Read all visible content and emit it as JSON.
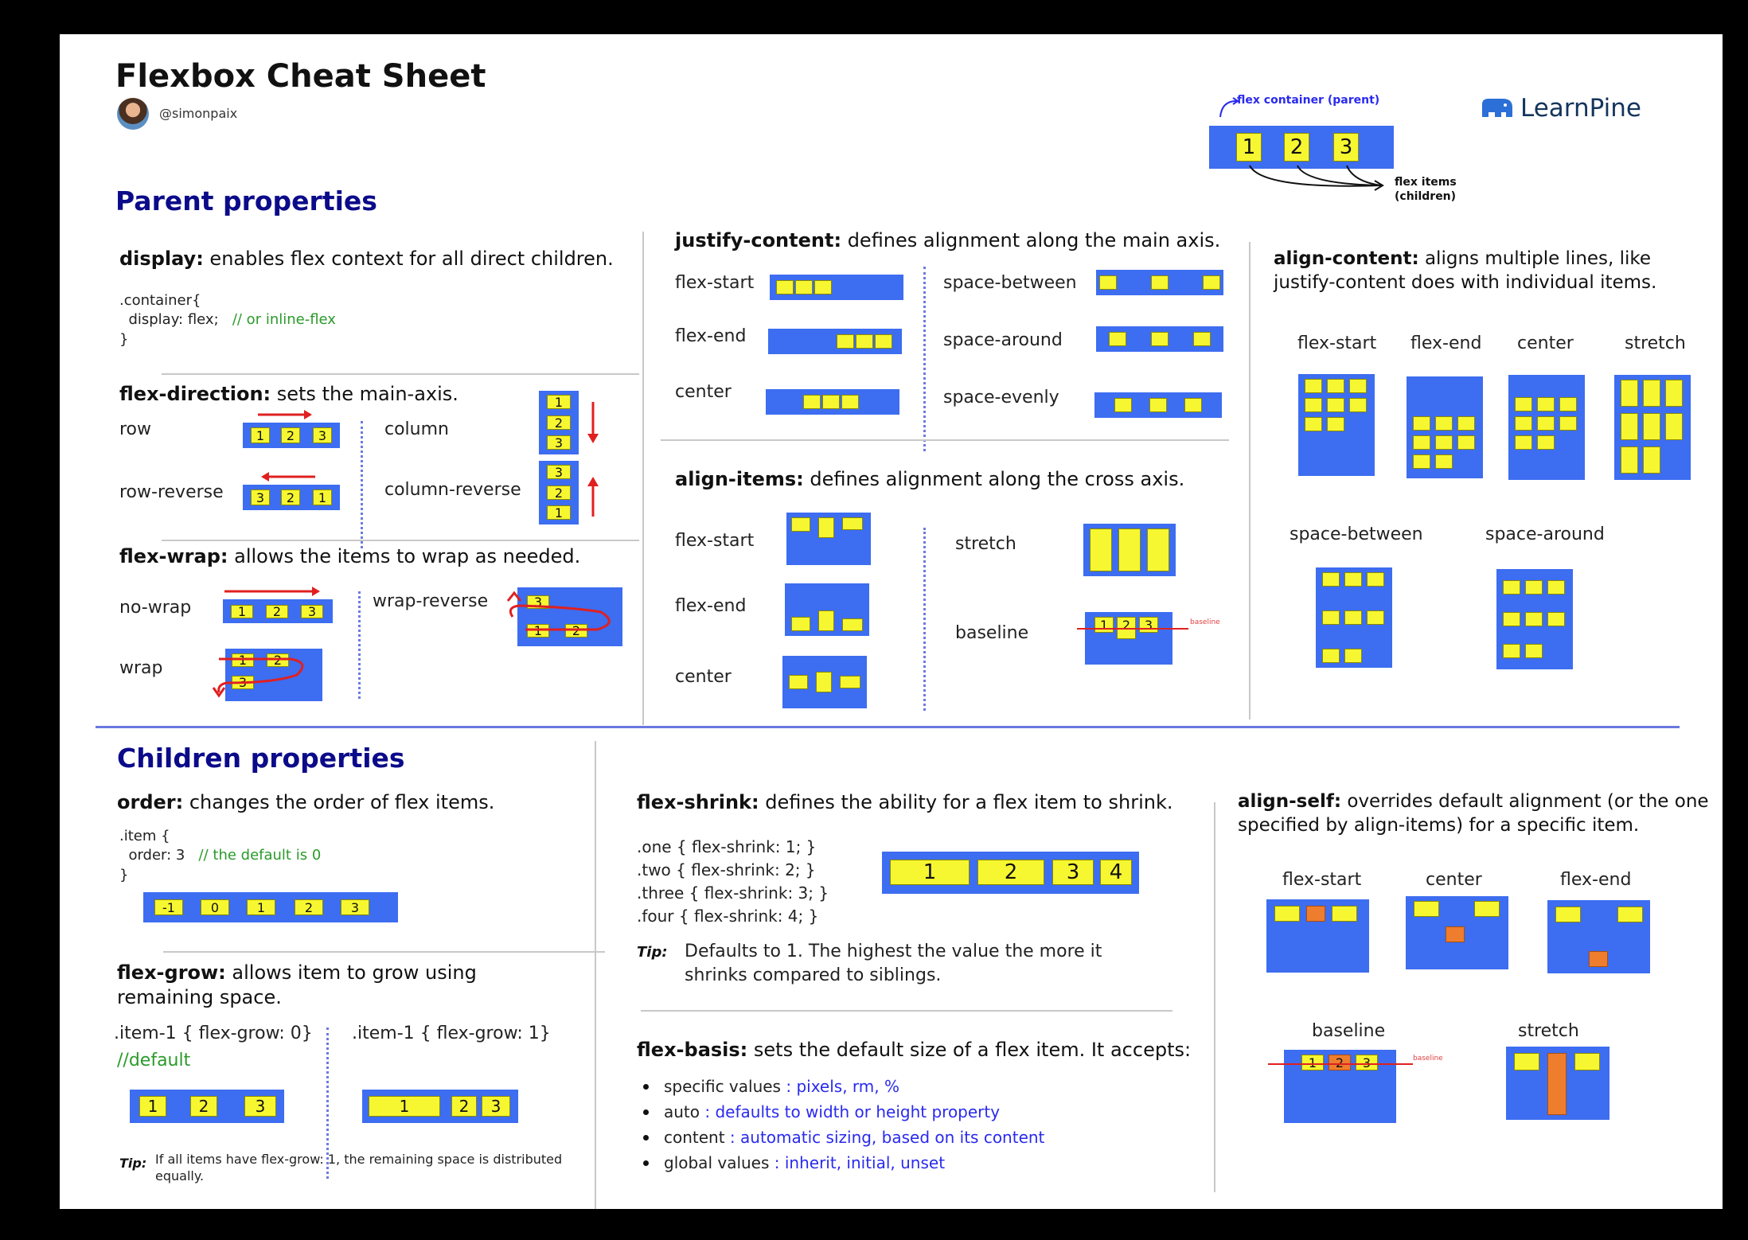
{
  "header": {
    "title": "Flexbox Cheat Sheet",
    "handle": "@simonpaix",
    "brand": "LearnPine",
    "container_note": "flex container (parent)",
    "items_note_1": "flex items",
    "items_note_2": "(children)",
    "demo_items": [
      "1",
      "2",
      "3"
    ]
  },
  "parent": {
    "title": "Parent properties",
    "display": {
      "prop": "display:",
      "desc": " enables flex context for all direct children.",
      "code_1": ".container{",
      "code_2": "  display: flex;",
      "code_comment": "// or inline-flex",
      "code_3": "}"
    },
    "direction": {
      "prop": "flex-direction:",
      "desc": " sets the main-axis.",
      "row": "row",
      "row_reverse": "row-reverse",
      "column": "column",
      "column_reverse": "column-reverse",
      "items": [
        "1",
        "2",
        "3"
      ],
      "items_rev": [
        "3",
        "2",
        "1"
      ]
    },
    "wrap": {
      "prop": "flex-wrap:",
      "desc": " allows the items to wrap as needed.",
      "no_wrap": "no-wrap",
      "wrap": "wrap",
      "wrap_reverse": "wrap-reverse"
    },
    "justify": {
      "prop": "justify-content:",
      "desc": " defines alignment along the main axis.",
      "flex_start": "flex-start",
      "flex_end": "flex-end",
      "center": "center",
      "space_between": "space-between",
      "space_around": "space-around",
      "space_evenly": "space-evenly"
    },
    "align_items": {
      "prop": "align-items:",
      "desc": " defines alignment along the cross axis.",
      "flex_start": "flex-start",
      "flex_end": "flex-end",
      "center": "center",
      "stretch": "stretch",
      "baseline": "baseline",
      "baseline_note": "baseline"
    },
    "align_content": {
      "prop": "align-content:",
      "desc": " aligns multiple lines, like justify-content does with individual items.",
      "flex_start": "flex-start",
      "flex_end": "flex-end",
      "center": "center",
      "stretch": "stretch",
      "space_between": "space-between",
      "space_around": "space-around"
    }
  },
  "children": {
    "title": "Children properties",
    "order": {
      "prop": "order:",
      "desc": " changes the order of flex items.",
      "code_1": ".item {",
      "code_2": "  order: 3",
      "code_comment": "// the default is 0",
      "code_3": "}",
      "items": [
        "-1",
        "0",
        "1",
        "2",
        "3"
      ]
    },
    "grow": {
      "prop": "flex-grow:",
      "desc": " allows item to grow using remaining space.",
      "code_a": ".item-1 { flex-grow: 0}",
      "code_a_comment": "//default",
      "code_b": ".item-1 { flex-grow: 1}",
      "tip_label": "Tip:",
      "tip": "If all items have flex-grow: 1, the remaining space is distributed equally."
    },
    "shrink": {
      "prop": "flex-shrink:",
      "desc": " defines the ability for a flex item to shrink.",
      "code_1": ".one { flex-shrink: 1; }",
      "code_2": ".two { flex-shrink: 2; }",
      "code_3": ".three { flex-shrink: 3; }",
      "code_4": ".four { flex-shrink: 4; }",
      "items": [
        "1",
        "2",
        "3",
        "4"
      ],
      "tip_label": "Tip:",
      "tip": "Defaults to 1. The highest the value the more it shrinks compared to siblings."
    },
    "basis": {
      "prop": "flex-basis:",
      "desc": " sets the default size of a flex item. It accepts:",
      "list": [
        {
          "k": "specific values",
          "v": " : pixels, rm, %"
        },
        {
          "k": "auto",
          "v": " : defaults to width or height property"
        },
        {
          "k": "content",
          "v": " : automatic sizing, based on its content"
        },
        {
          "k": "global values",
          "v": " : inherit, initial, unset"
        }
      ]
    },
    "align_self": {
      "prop": "align-self:",
      "desc": " overrides default alignment (or the one specified by align-items) for a specific item.",
      "flex_start": "flex-start",
      "center": "center",
      "flex_end": "flex-end",
      "baseline": "baseline",
      "stretch": "stretch",
      "baseline_note": "baseline"
    }
  },
  "colors": {
    "container": "#3d6df0",
    "item": "#f7f731",
    "highlight": "#ef7d2e",
    "arrow": "#e02020",
    "section_title": "#0b0b8a"
  },
  "icons": [
    "avatar",
    "learnpine-logo-icon",
    "arrow-right-icon",
    "arrow-left-icon",
    "arrow-down-icon",
    "arrow-up-icon",
    "wrap-arrow-icon"
  ]
}
